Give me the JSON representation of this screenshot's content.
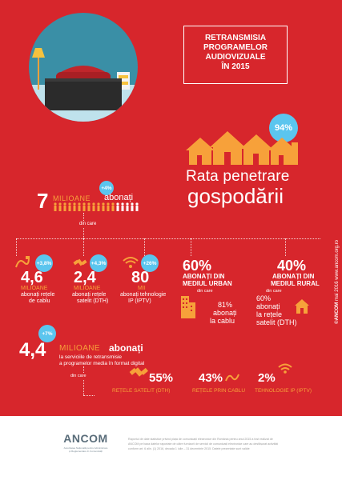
{
  "title": {
    "line1": "RETRANSMISIA",
    "line2": "PROGRAMELOR",
    "line3": "AUDIOVIZUALE",
    "line4": "ÎN 2015"
  },
  "penetration": {
    "percent": "94%",
    "line1": "Rata penetrare",
    "line2": "gospodării"
  },
  "subscribers": {
    "number": "7",
    "unit": "MILIOANE",
    "label": "abonați",
    "growth": "+4%",
    "din_care": "din care"
  },
  "breakdown": [
    {
      "growth": "+3,8%",
      "value": "4,6",
      "unit": "MILIOANE",
      "desc1": "abonați rețele",
      "desc2": "de cablu"
    },
    {
      "growth": "+4,3%",
      "value": "2,4",
      "unit": "MILIOANE",
      "desc1": "abonați rețele",
      "desc2": "satelit (DTH)"
    },
    {
      "growth": "+26%",
      "value": "80",
      "unit": "MII",
      "desc1": "abonați tehnologie",
      "desc2": "IP (IPTV)"
    }
  ],
  "urban": {
    "percent": "60%",
    "line1": "ABONAȚI DIN",
    "line2": "MEDIUL URBAN",
    "din_care": "din care",
    "sub_percent": "81%",
    "sub1": "abonați",
    "sub2": "la cablu"
  },
  "rural": {
    "percent": "40%",
    "line1": "ABONAȚI DIN",
    "line2": "MEDIUL RURAL",
    "din_care": "din care",
    "sub_percent": "60%",
    "sub1": "abonați",
    "sub2": "la rețele",
    "sub3": "satelit (DTH)"
  },
  "digital": {
    "growth": "+7%",
    "value": "4,4",
    "unit": "MILIOANE",
    "label": "abonați",
    "desc1": "la serviciile de retransmisie",
    "desc2": "a programelor media în format digital",
    "din_care": "din care"
  },
  "digital_breakdown": [
    {
      "percent": "55%",
      "label": "REȚELE SATELIT (DTH)"
    },
    {
      "percent": "43%",
      "label": "REȚELE PRIN CABLU"
    },
    {
      "percent": "2%",
      "label": "TEHNOLOGIE IP (IPTV)"
    }
  ],
  "side_note": {
    "brand": "©ANCOM",
    "text": "mai 2016  www.ancom.org.ro"
  },
  "footer": {
    "logo": "ANCOM",
    "logo_sub1": "Autoritatea Națională pentru Administrare",
    "logo_sub2": "și Reglementare în Comunicații",
    "note1": "Raportul de date statistice privind piața de comunicații electronice din România pentru anul 2015 a fost realizat de",
    "note2": "ANCOM pe baza datelor raportate de către furnizorii de servicii de comunicații electronice care au desfășurat activități",
    "note3": "conform art. 6 alin. (1) 2016, decada 1 iulie – 31 decembrie 2015. Datele prezentate sunt valide"
  },
  "colors": {
    "background": "#d7262c",
    "accent_orange": "#f7a13a",
    "accent_blue": "#5bc5ee",
    "teal": "#3a8fa6"
  }
}
